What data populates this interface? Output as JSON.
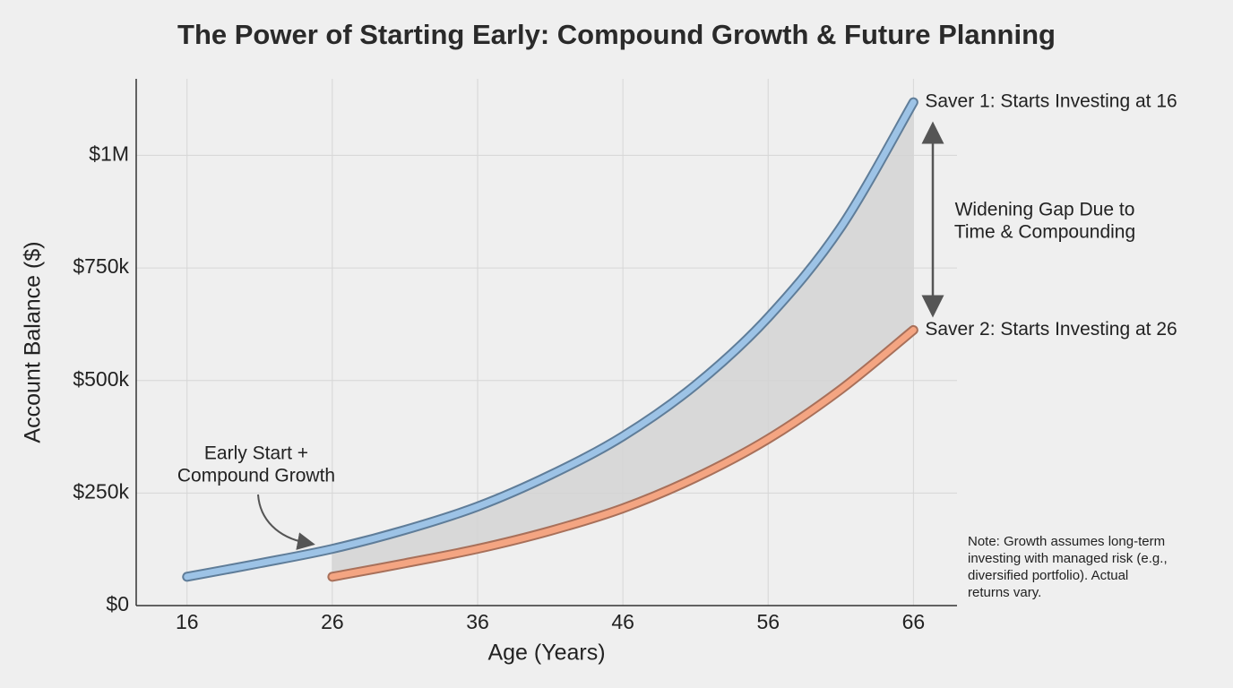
{
  "chart_data": {
    "type": "line",
    "title": "The Power of Starting Early: Compound Growth & Future Planning",
    "x_label": "Age (Years)",
    "y_label": "Account Balance ($)",
    "x": [
      16,
      21,
      26,
      31,
      36,
      41,
      46,
      51,
      56,
      61,
      66
    ],
    "series": [
      {
        "name": "Saver 1: Starts Investing at 16",
        "color": "#9dc3e6",
        "outline": "#5f7d99",
        "values": [
          64000,
          94000,
          126000,
          168000,
          220000,
          290000,
          376000,
          490000,
          640000,
          840000,
          1118000
        ]
      },
      {
        "name": "Saver 2: Starts Investing at 26",
        "color": "#f4a582",
        "outline": "#a8705a",
        "values": [
          null,
          null,
          64000,
          94000,
          126000,
          166000,
          216000,
          284000,
          370000,
          480000,
          612000
        ]
      }
    ],
    "xlim": [
      12.5,
      69
    ],
    "ylim": [
      0,
      1170000
    ],
    "xticks": [
      16,
      26,
      36,
      46,
      56,
      66
    ],
    "yticks": [
      {
        "value": 0,
        "label": "$0"
      },
      {
        "value": 250000,
        "label": "$250k"
      },
      {
        "value": 500000,
        "label": "$500k"
      },
      {
        "value": 750000,
        "label": "$750k"
      },
      {
        "value": 1000000,
        "label": "$1M"
      }
    ],
    "grid": true,
    "annotations": [
      {
        "lines": [
          "Early Start +",
          "Compound Growth"
        ]
      },
      {
        "lines": [
          "Widening Gap Due to",
          "Time & Compounding"
        ]
      },
      {
        "lines": [
          "Note: Growth assumes long-term",
          "investing with managed risk (e.g.,",
          "diversified portfolio). Actual",
          "returns vary."
        ]
      }
    ]
  }
}
